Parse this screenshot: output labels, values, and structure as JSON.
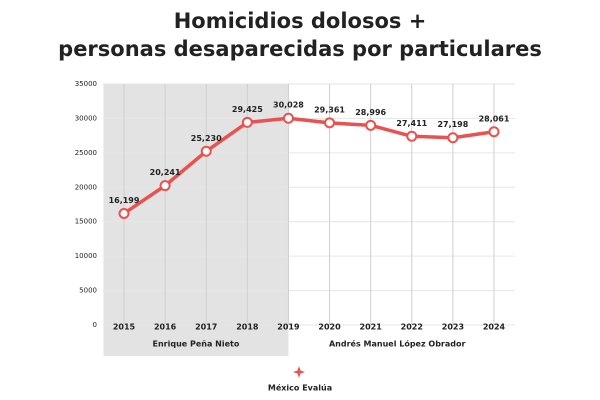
{
  "chart_data": {
    "type": "line",
    "title": [
      "Homicidios dolosos +",
      "personas desaparecidas por particulares"
    ],
    "categories": [
      "2015",
      "2016",
      "2017",
      "2018",
      "2019",
      "2020",
      "2021",
      "2022",
      "2023",
      "2024"
    ],
    "series": [
      {
        "color": "#e8524f",
        "values": [
          16199,
          20241,
          25230,
          29425,
          30028,
          29361,
          28996,
          27411,
          27198,
          28061
        ],
        "value_labels": [
          "16,199",
          "20,241",
          "25,230",
          "29,425",
          "30,028",
          "29,361",
          "28,996",
          "27,411",
          "27,198",
          "28,061"
        ]
      }
    ],
    "ylim": [
      0,
      35000
    ],
    "yticks": [
      0,
      5000,
      10000,
      15000,
      20000,
      25000,
      30000,
      35000
    ],
    "grid": true,
    "periods": [
      {
        "label": "Enrique Peña Nieto",
        "start": "2015",
        "end": "2019",
        "color": "#e3e3e3"
      },
      {
        "label": "Andrés Manuel López Obrador",
        "start": "2019",
        "end": "2024"
      }
    ],
    "source": "México Evalúa"
  }
}
